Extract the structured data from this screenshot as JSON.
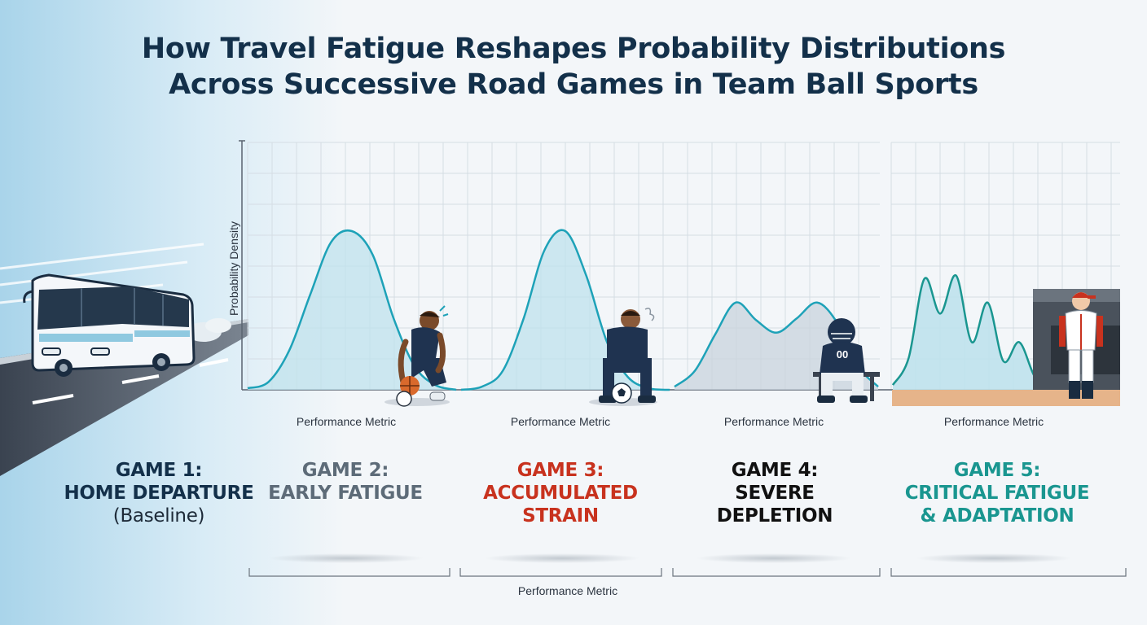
{
  "title_lines": [
    "How Travel Fatigue Reshapes Probability Distributions",
    "Across Successive Road Games in Team Ball Sports"
  ],
  "colors": {
    "title": "#13304a",
    "game1": "#13304a",
    "game2": "#5d6b78",
    "game3": "#c8321e",
    "game4": "#111111",
    "game5": "#1a9690",
    "curve": "#1ea2b8",
    "fill": "#bfe2ec",
    "fill_game4": "#c8d3dc"
  },
  "icons": [
    "bus-icon",
    "basketball-player-icon",
    "soccer-player-icon",
    "football-player-icon",
    "baseball-player-icon"
  ],
  "games": [
    {
      "line1": "GAME 1:",
      "line2": "HOME DEPARTURE",
      "line3": "(Baseline)"
    },
    {
      "line1": "GAME 2:",
      "line2": "EARLY FATIGUE",
      "line3": ""
    },
    {
      "line1": "GAME 3:",
      "line2": "ACCUMULATED",
      "line3": "STRAIN"
    },
    {
      "line1": "GAME 4:",
      "line2": "SEVERE",
      "line3": "DEPLETION"
    },
    {
      "line1": "GAME 5:",
      "line2": "CRITICAL FATIGUE",
      "line3": "& ADAPTATION"
    }
  ],
  "chart_data": {
    "type": "area",
    "ylabel": "Probability Density",
    "xlabel": "Performance Metric",
    "bottom_xlabel": "Performance Metric",
    "panels": [
      {
        "name": "Game 2",
        "xlabel": "Performance Metric",
        "x": [
          0,
          0.1,
          0.2,
          0.3,
          0.4,
          0.5,
          0.6,
          0.7,
          0.8,
          0.9,
          1.0
        ],
        "y": [
          0.01,
          0.05,
          0.25,
          0.6,
          0.93,
          1.0,
          0.85,
          0.45,
          0.15,
          0.03,
          0.0
        ]
      },
      {
        "name": "Game 3",
        "xlabel": "Performance Metric",
        "x": [
          0,
          0.1,
          0.2,
          0.3,
          0.4,
          0.5,
          0.6,
          0.7,
          0.8,
          0.9,
          1.0
        ],
        "y": [
          0.0,
          0.02,
          0.12,
          0.45,
          0.88,
          1.0,
          0.72,
          0.3,
          0.08,
          0.01,
          0.0
        ]
      },
      {
        "name": "Game 4",
        "xlabel": "Performance Metric",
        "x": [
          0,
          0.1,
          0.2,
          0.3,
          0.4,
          0.5,
          0.6,
          0.7,
          0.8,
          0.9,
          1.0
        ],
        "y": [
          0.02,
          0.12,
          0.35,
          0.55,
          0.44,
          0.36,
          0.45,
          0.55,
          0.42,
          0.15,
          0.02
        ]
      },
      {
        "name": "Game 5",
        "xlabel": "Performance Metric",
        "x": [
          0,
          0.1,
          0.2,
          0.3,
          0.4,
          0.5,
          0.6,
          0.7,
          0.8,
          0.9,
          1.0
        ],
        "y": [
          0.03,
          0.2,
          0.7,
          0.48,
          0.72,
          0.3,
          0.55,
          0.18,
          0.3,
          0.08,
          0.02
        ]
      }
    ]
  }
}
